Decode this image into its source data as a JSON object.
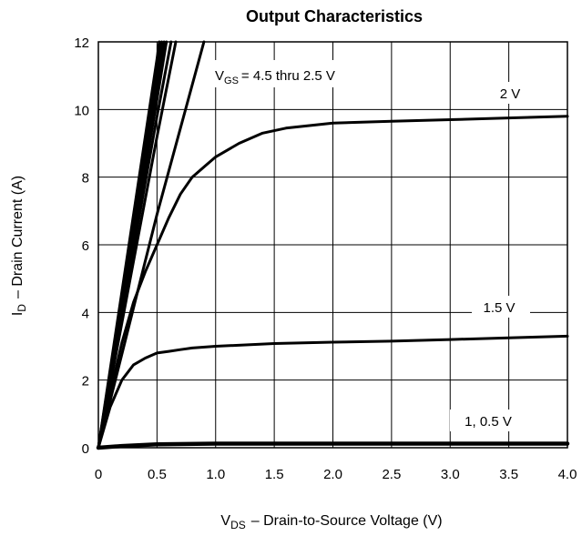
{
  "chart_data": {
    "type": "line",
    "title": "Output Characteristics",
    "xlabel": {
      "main": "V",
      "sub": "DS",
      "rest": "–  Drain-to-Source Voltage (V)"
    },
    "ylabel": {
      "main": "I",
      "sub": "D",
      "rest": "–  Drain Current (A)"
    },
    "xlim": [
      0,
      4.0
    ],
    "ylim": [
      0,
      12
    ],
    "x_ticks": [
      "0",
      "0.5",
      "1.0",
      "1.5",
      "2.0",
      "2.5",
      "3.0",
      "3.5",
      "4.0"
    ],
    "y_ticks": [
      "0",
      "2",
      "4",
      "6",
      "8",
      "10",
      "12"
    ],
    "grid": true,
    "annotations": {
      "vgs_main": "V",
      "vgs_sub": "GS",
      "vgs_rest": "= 4.5 thru 2.5 V",
      "label_2v": "2 V",
      "label_1p5v": "1.5 V",
      "label_1v": "1, 0.5 V"
    },
    "series": [
      {
        "name": "",
        "x": [
          0,
          0.5,
          0.52
        ],
        "y": [
          0,
          11.5,
          12
        ]
      },
      {
        "name": "",
        "x": [
          0,
          0.5,
          0.54
        ],
        "y": [
          0,
          11.1,
          12
        ]
      },
      {
        "name": "",
        "x": [
          0,
          0.5,
          0.56
        ],
        "y": [
          0,
          10.7,
          12
        ]
      },
      {
        "name": "",
        "x": [
          0,
          0.5,
          0.58
        ],
        "y": [
          0,
          10.3,
          12
        ]
      },
      {
        "name": "",
        "x": [
          0,
          0.5,
          0.62
        ],
        "y": [
          0,
          9.8,
          12
        ]
      },
      {
        "name": "",
        "x": [
          0,
          0.5,
          0.66
        ],
        "y": [
          0,
          9.2,
          12
        ]
      },
      {
        "name": "",
        "x": [
          0,
          0.5,
          0.9
        ],
        "y": [
          0,
          6.9,
          12
        ]
      },
      {
        "name": "2 V",
        "x": [
          0,
          0.1,
          0.2,
          0.3,
          0.4,
          0.5,
          0.6,
          0.7,
          0.8,
          0.9,
          1.0,
          1.2,
          1.4,
          1.6,
          2.0,
          2.5,
          3.0,
          3.5,
          4.0
        ],
        "y": [
          0,
          1.6,
          3.1,
          4.3,
          5.2,
          6.0,
          6.8,
          7.5,
          8.0,
          8.3,
          8.6,
          9.0,
          9.3,
          9.45,
          9.6,
          9.65,
          9.7,
          9.75,
          9.8
        ]
      },
      {
        "name": "1.5 V",
        "x": [
          0,
          0.1,
          0.2,
          0.3,
          0.4,
          0.5,
          0.6,
          0.7,
          0.8,
          1.0,
          1.5,
          2.0,
          2.5,
          3.0,
          3.5,
          4.0
        ],
        "y": [
          0,
          1.2,
          2.0,
          2.45,
          2.65,
          2.8,
          2.85,
          2.9,
          2.95,
          3.0,
          3.08,
          3.12,
          3.15,
          3.2,
          3.25,
          3.3
        ]
      },
      {
        "name": "1, 0.5 V",
        "x": [
          0,
          0.2,
          0.5,
          1.0,
          2.0,
          3.0,
          4.0
        ],
        "y": [
          0,
          0.05,
          0.1,
          0.12,
          0.12,
          0.12,
          0.12
        ]
      }
    ]
  }
}
